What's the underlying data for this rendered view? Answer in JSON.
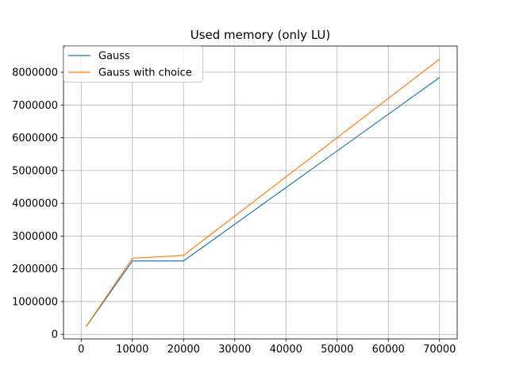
{
  "chart_data": {
    "type": "line",
    "title": "Used memory (only LU)",
    "xlabel": "",
    "ylabel": "",
    "xlim": [
      -3450,
      73450
    ],
    "ylim": [
      -140000,
      8800000
    ],
    "xticks": [
      0,
      10000,
      20000,
      30000,
      40000,
      50000,
      60000,
      70000
    ],
    "xtick_labels": [
      "0",
      "10000",
      "20000",
      "30000",
      "40000",
      "50000",
      "60000",
      "70000"
    ],
    "yticks": [
      0,
      1000000,
      2000000,
      3000000,
      4000000,
      5000000,
      6000000,
      7000000,
      8000000
    ],
    "ytick_labels": [
      "0",
      "1000000",
      "2000000",
      "3000000",
      "4000000",
      "5000000",
      "6000000",
      "7000000",
      "8000000"
    ],
    "grid": true,
    "legend_position": "top-left",
    "x": [
      1000,
      10000,
      20000,
      70000
    ],
    "series": [
      {
        "name": "Gauss",
        "color": "#1f77b4",
        "values": [
          240000,
          2240000,
          2240000,
          7840000
        ]
      },
      {
        "name": "Gauss with choice",
        "color": "#ff7f0e",
        "values": [
          250000,
          2320000,
          2410000,
          8400000
        ]
      }
    ]
  }
}
